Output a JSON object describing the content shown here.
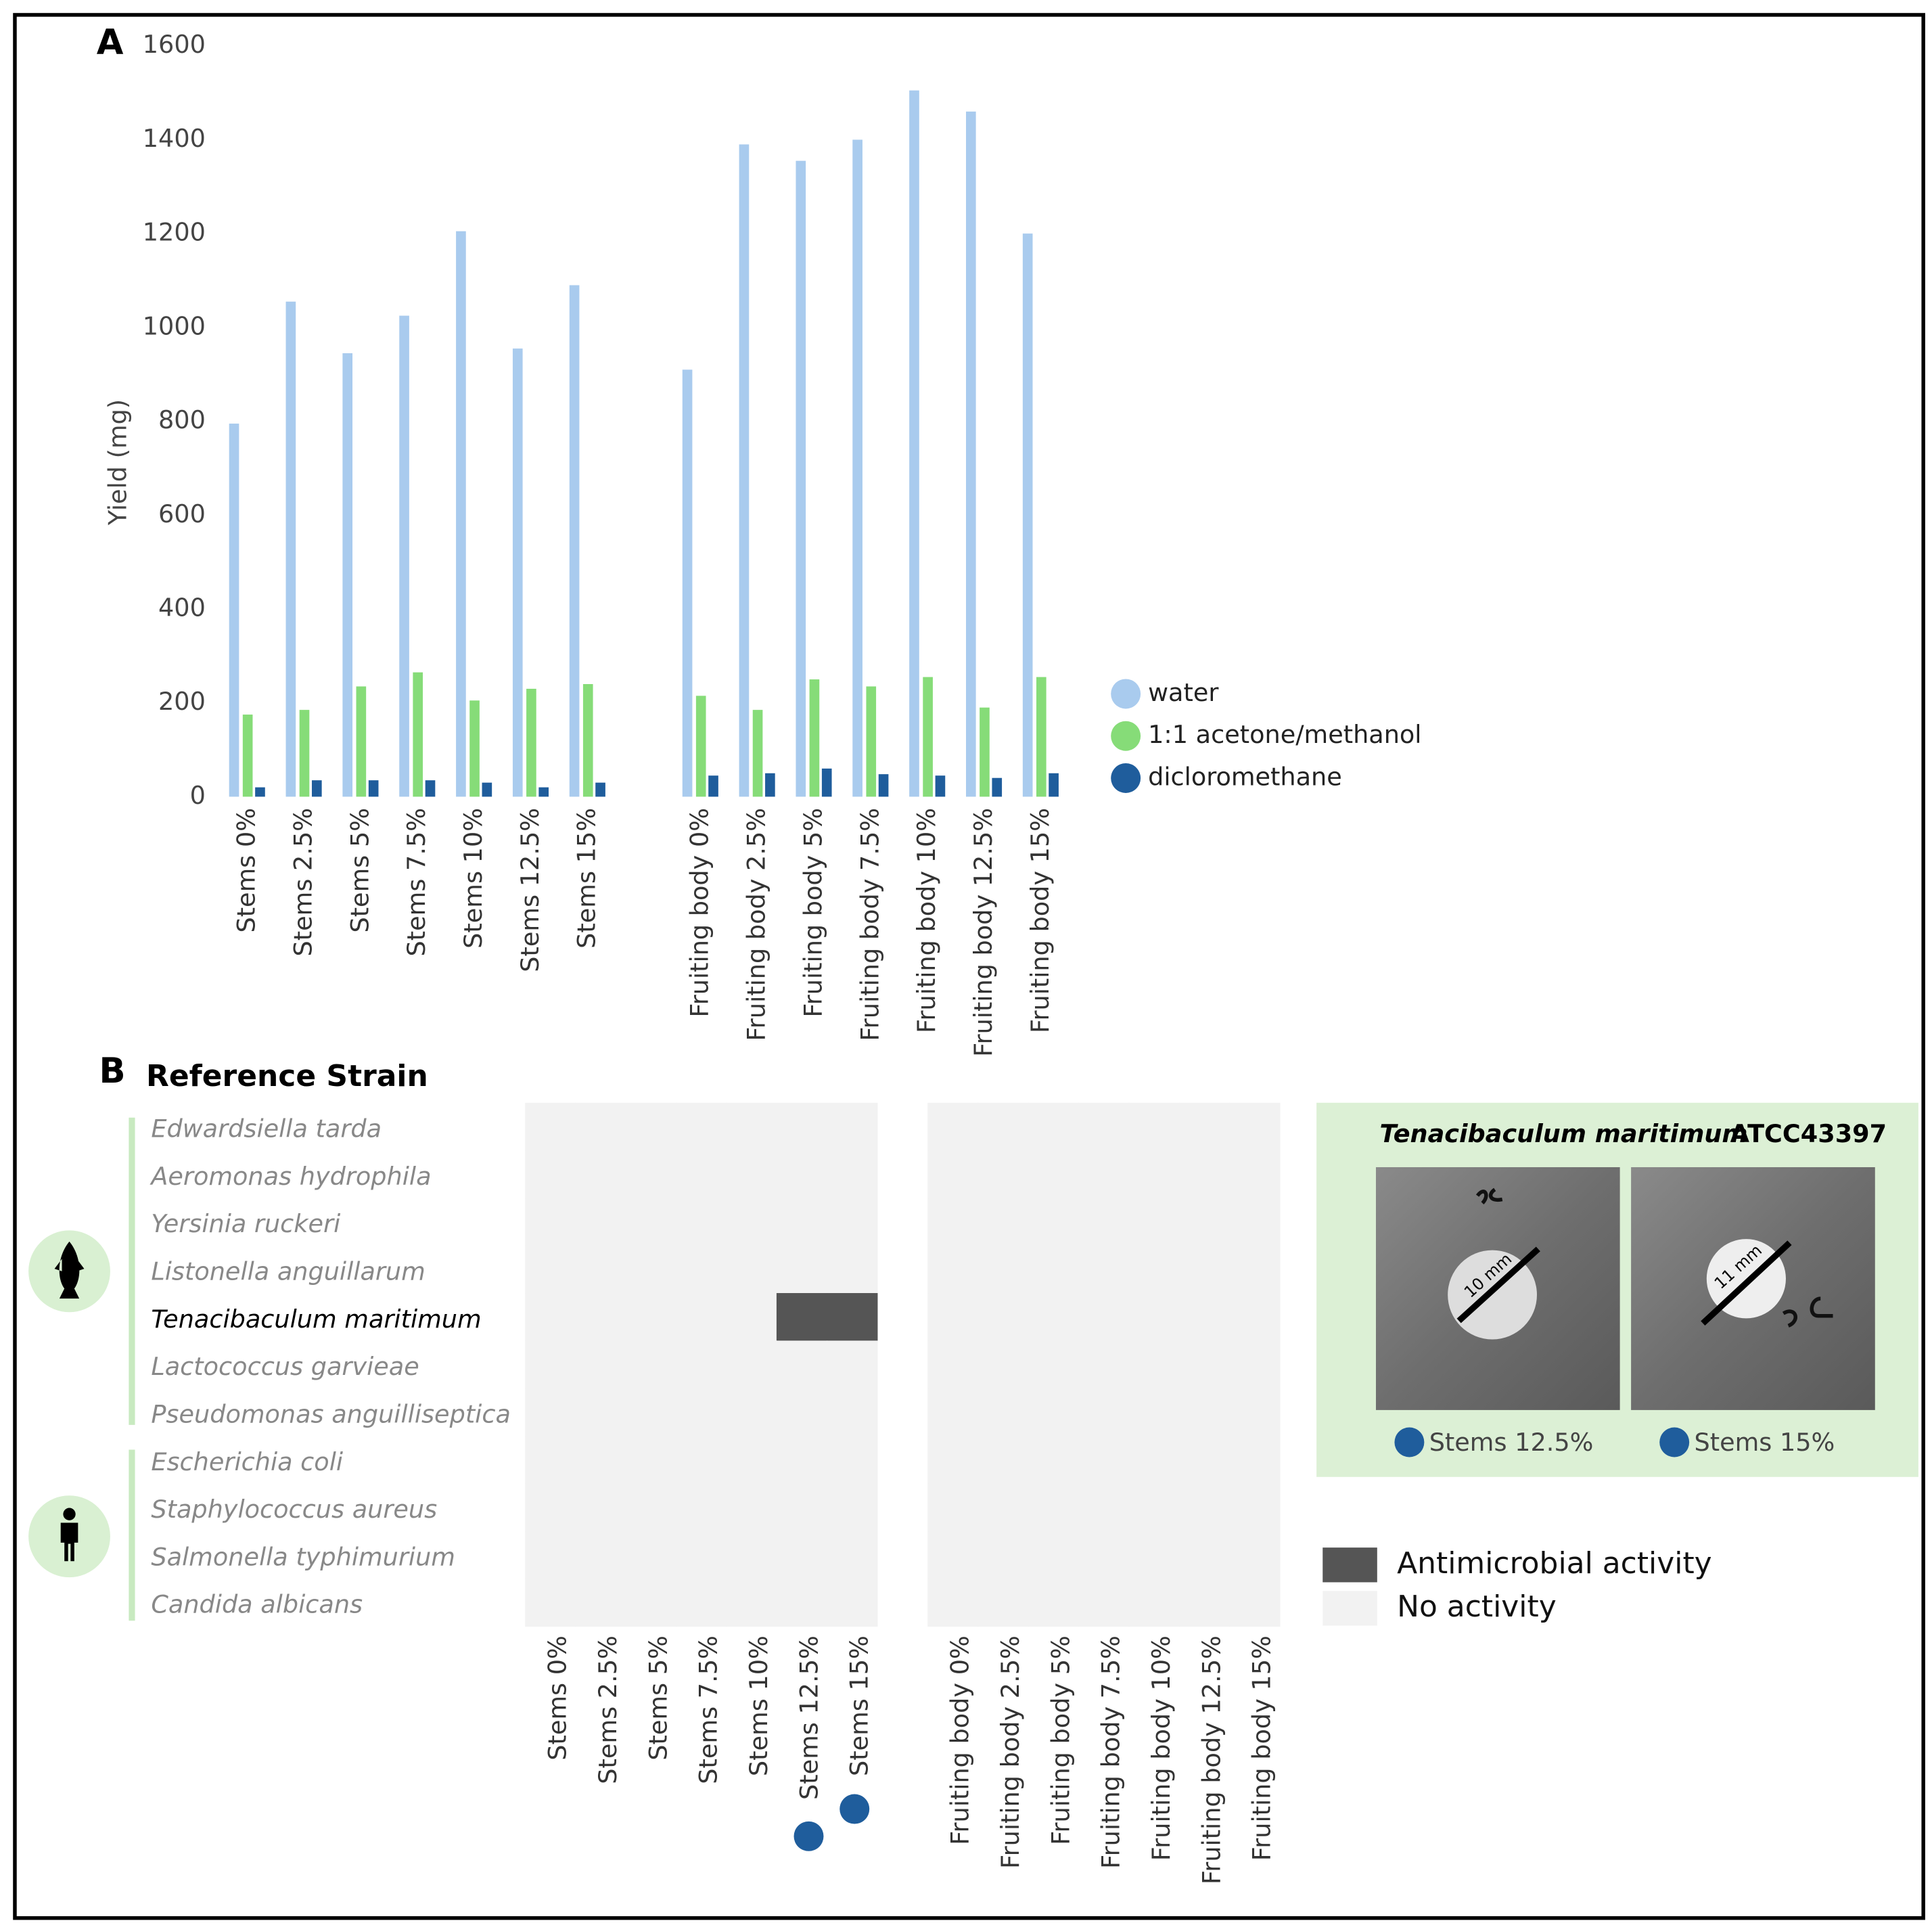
{
  "panel_labels": [
    "A",
    "B"
  ],
  "chart_data": {
    "type": "bar",
    "ylabel": "Yield (mg)",
    "categories": [
      "Stems 0%",
      "Stems 2.5%",
      "Stems 5%",
      "Stems 7.5%",
      "Stems 10%",
      "Stems 12.5%",
      "Stems 15%",
      "Fruiting body 0%",
      "Fruiting body 2.5%",
      "Fruiting body 5%",
      "Fruiting body 7.5%",
      "Fruiting body 10%",
      "Fruiting body 12.5%",
      "Fruiting body 15%"
    ],
    "series": [
      {
        "name": "water",
        "color": "#a9cbee",
        "values": [
          795,
          1055,
          945,
          1025,
          1205,
          955,
          1090,
          910,
          1390,
          1355,
          1400,
          1505,
          1460,
          1200
        ]
      },
      {
        "name": "1:1 acetone/methanol",
        "color": "#86dc78",
        "values": [
          175,
          185,
          235,
          265,
          205,
          230,
          240,
          215,
          185,
          250,
          235,
          255,
          190,
          255
        ]
      },
      {
        "name": "dicloromethane",
        "color": "#1f5d9c",
        "values": [
          20,
          35,
          35,
          35,
          30,
          20,
          30,
          45,
          50,
          60,
          48,
          45,
          40,
          50
        ]
      }
    ],
    "ylim": [
      0,
      1600
    ],
    "yticks": [
      0,
      200,
      400,
      600,
      800,
      1000,
      1200,
      1400,
      1600
    ],
    "grid": false,
    "legend": "right"
  },
  "heatmap": {
    "title": "Reference Strain",
    "rows": [
      "Edwardsiella tarda",
      "Aeromonas hydrophila",
      "Yersinia ruckeri",
      "Listonella anguillarum",
      "Tenacibaculum maritimum",
      "Lactococcus garvieae",
      "Pseudomonas anguilliseptica",
      "Escherichia coli",
      "Staphylococcus aureus",
      "Salmonella typhimurium",
      "Candida albicans"
    ],
    "highlight_row": 4,
    "columns": [
      "Stems 0%",
      "Stems 2.5%",
      "Stems 5%",
      "Stems 7.5%",
      "Stems 10%",
      "Stems 12.5%",
      "Stems 15%",
      "Fruiting body 0%",
      "Fruiting body 2.5%",
      "Fruiting body 5%",
      "Fruiting body 7.5%",
      "Fruiting body 10%",
      "Fruiting body 12.5%",
      "Fruiting body 15%"
    ],
    "values": [
      [
        0,
        0,
        0,
        0,
        0,
        0,
        0,
        0,
        0,
        0,
        0,
        0,
        0,
        0
      ],
      [
        0,
        0,
        0,
        0,
        0,
        0,
        0,
        0,
        0,
        0,
        0,
        0,
        0,
        0
      ],
      [
        0,
        0,
        0,
        0,
        0,
        0,
        0,
        0,
        0,
        0,
        0,
        0,
        0,
        0
      ],
      [
        0,
        0,
        0,
        0,
        0,
        0,
        0,
        0,
        0,
        0,
        0,
        0,
        0,
        0
      ],
      [
        0,
        0,
        0,
        0,
        0,
        1,
        1,
        0,
        0,
        0,
        0,
        0,
        0,
        0
      ],
      [
        0,
        0,
        0,
        0,
        0,
        0,
        0,
        0,
        0,
        0,
        0,
        0,
        0,
        0
      ],
      [
        0,
        0,
        0,
        0,
        0,
        0,
        0,
        0,
        0,
        0,
        0,
        0,
        0,
        0
      ],
      [
        0,
        0,
        0,
        0,
        0,
        0,
        0,
        0,
        0,
        0,
        0,
        0,
        0,
        0
      ],
      [
        0,
        0,
        0,
        0,
        0,
        0,
        0,
        0,
        0,
        0,
        0,
        0,
        0,
        0
      ],
      [
        0,
        0,
        0,
        0,
        0,
        0,
        0,
        0,
        0,
        0,
        0,
        0,
        0,
        0
      ],
      [
        0,
        0,
        0,
        0,
        0,
        0,
        0,
        0,
        0,
        0,
        0,
        0,
        0,
        0
      ]
    ],
    "legend": [
      {
        "label": "No activity",
        "color": "#f2f2f2"
      },
      {
        "label": "Antimicrobial activity",
        "color": "#555555"
      }
    ]
  },
  "inset": {
    "title_italic": "Tenacibaculum maritimum",
    "title_rest": "ATCC43397",
    "images": [
      {
        "measure": "10 mm",
        "caption": "Stems 12.5%"
      },
      {
        "measure": "11 mm",
        "caption": "Stems 15%"
      }
    ]
  }
}
